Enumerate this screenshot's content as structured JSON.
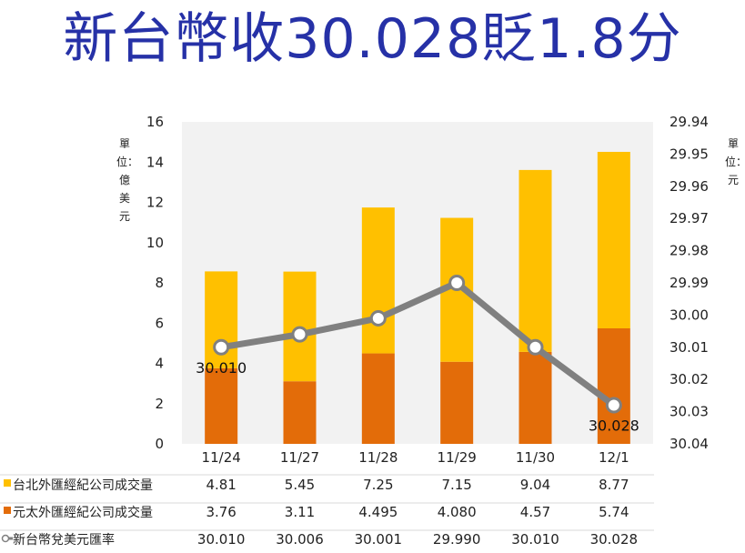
{
  "title": "新台幣收30.028貶1.8分",
  "chart_data": {
    "type": "bar",
    "stacked": true,
    "categories": [
      "11/24",
      "11/27",
      "11/28",
      "11/29",
      "11/30",
      "12/1"
    ],
    "left_axis": {
      "label": "單位：億美元",
      "ylim": [
        0,
        16
      ],
      "ticks": [
        "0",
        "2",
        "4",
        "6",
        "8",
        "10",
        "12",
        "14",
        "16"
      ]
    },
    "right_axis": {
      "label": "單位：元",
      "ylim": [
        29.94,
        30.04
      ],
      "inverted": true,
      "ticks": [
        "29.94",
        "29.95",
        "29.96",
        "29.97",
        "29.98",
        "29.99",
        "30.00",
        "30.01",
        "30.02",
        "30.03",
        "30.04"
      ]
    },
    "series": [
      {
        "name": "台北外匯經紀公司成交量",
        "kind": "bar",
        "color": "#ffc000",
        "values": [
          4.81,
          5.45,
          7.25,
          7.15,
          9.04,
          8.77
        ],
        "labels": [
          "4.81",
          "5.45",
          "7.25",
          "7.15",
          "9.04",
          "8.77"
        ]
      },
      {
        "name": "元太外匯經紀公司成交量",
        "kind": "bar",
        "color": "#e36c09",
        "values": [
          3.76,
          3.11,
          4.495,
          4.08,
          4.57,
          5.74
        ],
        "labels": [
          "3.76",
          "3.11",
          "4.495",
          "4.080",
          "4.57",
          "5.74"
        ]
      },
      {
        "name": "新台幣兌美元匯率",
        "kind": "line",
        "color": "#808080",
        "values": [
          30.01,
          30.006,
          30.001,
          29.99,
          30.01,
          30.028
        ],
        "labels": [
          "30.010",
          "30.006",
          "30.001",
          "29.990",
          "30.010",
          "30.028"
        ]
      }
    ],
    "annotations": [
      {
        "index": 0,
        "text": "30.010"
      },
      {
        "index": 5,
        "text": "30.028"
      }
    ],
    "grid": false,
    "legend": "table-below"
  }
}
